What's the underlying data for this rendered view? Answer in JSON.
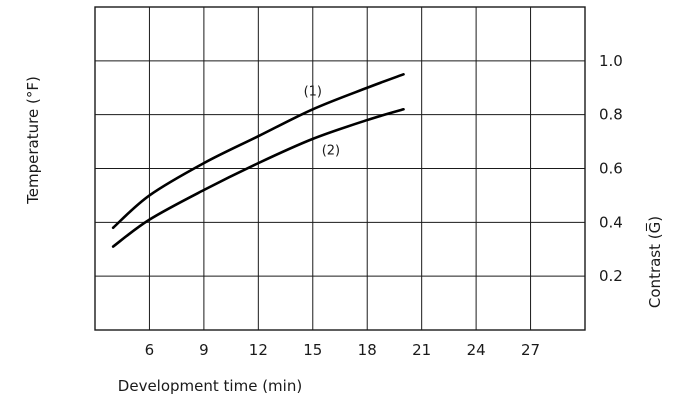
{
  "chart_data": {
    "type": "line",
    "title": "",
    "xlabel": "Development time (min)",
    "ylabel_left": "Temperature (°F)",
    "ylabel_right": "Contrast (G̅)",
    "x_ticks": [
      "6",
      "9",
      "12",
      "15",
      "18",
      "21",
      "24",
      "27"
    ],
    "y_ticks_right": [
      "0.2",
      "0.4",
      "0.6",
      "0.8",
      "1.0"
    ],
    "xlim": [
      3,
      30
    ],
    "ylim": [
      0,
      1.2
    ],
    "grid": true,
    "series": [
      {
        "name": "(1)",
        "color": "#000000",
        "points": [
          [
            4,
            0.38
          ],
          [
            6,
            0.5
          ],
          [
            9,
            0.62
          ],
          [
            12,
            0.72
          ],
          [
            15,
            0.82
          ],
          [
            18,
            0.9
          ],
          [
            20,
            0.95
          ]
        ]
      },
      {
        "name": "(2)",
        "color": "#000000",
        "points": [
          [
            4,
            0.31
          ],
          [
            6,
            0.41
          ],
          [
            9,
            0.52
          ],
          [
            12,
            0.62
          ],
          [
            15,
            0.71
          ],
          [
            18,
            0.78
          ],
          [
            20,
            0.82
          ]
        ]
      }
    ]
  }
}
